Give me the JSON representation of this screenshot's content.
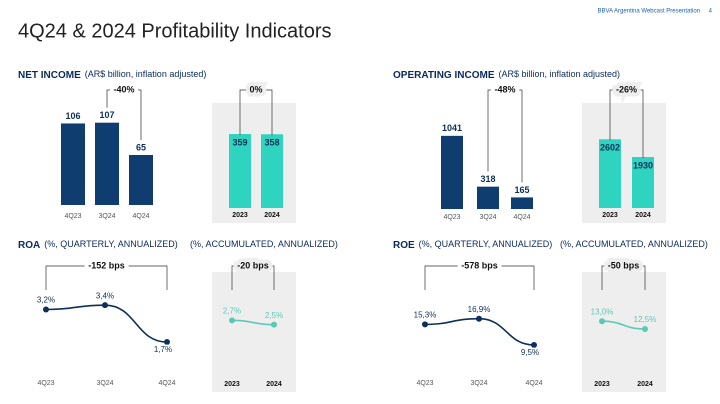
{
  "header": {
    "brand": "BBVA Argentina Webcast Presentation",
    "page": 4
  },
  "title": "4Q24 & 2024 Profitability Indicators",
  "chart_data": [
    {
      "type": "bar",
      "title": "NET INCOME",
      "subtitle": "(AR$ billion, inflation adjusted)",
      "categories": [
        "4Q23",
        "3Q24",
        "4Q24"
      ],
      "values": [
        106,
        107,
        65
      ],
      "color": "#103d6f",
      "annotation": "-40%",
      "ylim": [
        0,
        130
      ]
    },
    {
      "type": "bar",
      "categories": [
        "2023",
        "2024"
      ],
      "values": [
        359,
        358
      ],
      "color": "#2fd4c1",
      "annotation": "0%",
      "ylim": [
        0,
        500
      ],
      "background": "#eeeeee"
    },
    {
      "type": "bar",
      "title": "OPERATING INCOME",
      "subtitle": "(AR$ billion, inflation adjusted)",
      "categories": [
        "4Q23",
        "3Q24",
        "4Q24"
      ],
      "values": [
        1041,
        318,
        165
      ],
      "color": "#103d6f",
      "annotation": "-48%",
      "ylim": [
        0,
        1480
      ]
    },
    {
      "type": "bar",
      "categories": [
        "2023",
        "2024"
      ],
      "values": [
        2602,
        1930
      ],
      "color": "#2fd4c1",
      "annotation": "-26%",
      "ylim": [
        0,
        3900
      ],
      "background": "#eeeeee"
    },
    {
      "type": "line",
      "title": "ROA",
      "subtitle": "(%, QUARTERLY, ANNUALIZED)",
      "categories": [
        "4Q23",
        "3Q24",
        "4Q24"
      ],
      "values": [
        3.2,
        3.4,
        1.7
      ],
      "value_labels": [
        "3,2%",
        "3,4%",
        "1,7%"
      ],
      "color": "#0e2f5a",
      "annotation": "-152 bps",
      "ylim": [
        0.5,
        4.1
      ]
    },
    {
      "type": "line",
      "subtitle": "(%, ACCUMULATED, ANNUALIZED)",
      "categories": [
        "2023",
        "2024"
      ],
      "values": [
        2.7,
        2.5
      ],
      "value_labels": [
        "2,7%",
        "2,5%"
      ],
      "color": "#5cc9b8",
      "annotation": "-20 bps",
      "ylim": [
        0.5,
        4.1
      ],
      "background": "#eeeeee"
    },
    {
      "type": "line",
      "title": "ROE",
      "subtitle": "(%, QUARTERLY, ANNUALIZED)",
      "categories": [
        "4Q23",
        "3Q24",
        "4Q24"
      ],
      "values": [
        15.3,
        16.9,
        9.5
      ],
      "value_labels": [
        "15,3%",
        "16,9%",
        "9,5%"
      ],
      "color": "#0e2f5a",
      "annotation": "-578 bps",
      "ylim": [
        3,
        25
      ]
    },
    {
      "type": "line",
      "subtitle": "(%, ACCUMULATED, ANNUALIZED)",
      "categories": [
        "2023",
        "2024"
      ],
      "values": [
        13.0,
        12.5
      ],
      "value_labels": [
        "13,0%",
        "12,5%"
      ],
      "color": "#5cc9b8",
      "annotation": "-50 bps",
      "ylim": [
        10,
        15
      ],
      "background": "#eeeeee"
    }
  ]
}
